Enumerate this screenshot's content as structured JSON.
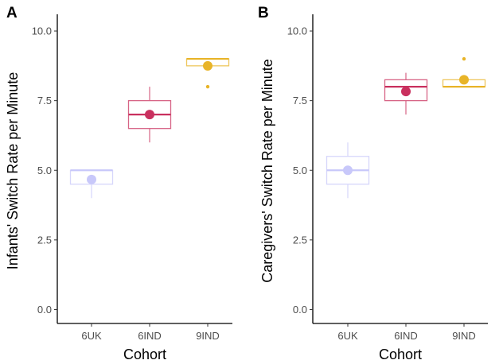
{
  "colors": {
    "6UK": "#c8c8fa",
    "6IND": "#c9305e",
    "9IND": "#e8b428"
  },
  "chart_data": [
    {
      "panel": "A",
      "type": "box",
      "xlabel": "Cohort",
      "ylabel": "Infants' Switch Rate per Minute",
      "ylim": [
        -0.5,
        10.6
      ],
      "yticks": [
        0.0,
        2.5,
        5.0,
        7.5,
        10.0
      ],
      "ytick_labels": [
        "0.0",
        "2.5",
        "5.0",
        "7.5",
        "10.0"
      ],
      "categories": [
        "6UK",
        "6IND",
        "9IND"
      ],
      "boxes": [
        {
          "category": "6UK",
          "min": 4.0,
          "q1": 4.5,
          "median": 5.0,
          "q3": 5.0,
          "max": 5.0,
          "mean": 4.67,
          "outliers": []
        },
        {
          "category": "6IND",
          "min": 6.0,
          "q1": 6.5,
          "median": 7.0,
          "q3": 7.5,
          "max": 8.0,
          "mean": 7.0,
          "outliers": []
        },
        {
          "category": "9IND",
          "min": 8.75,
          "q1": 8.75,
          "median": 9.0,
          "q3": 9.0,
          "max": 9.0,
          "mean": 8.75,
          "outliers": [
            8.0
          ]
        }
      ]
    },
    {
      "panel": "B",
      "type": "box",
      "xlabel": "Cohort",
      "ylabel": "Caregivers' Switch Rate per Minute",
      "ylim": [
        -0.5,
        10.6
      ],
      "yticks": [
        0.0,
        2.5,
        5.0,
        7.5,
        10.0
      ],
      "ytick_labels": [
        "0.0",
        "2.5",
        "5.0",
        "7.5",
        "10.0"
      ],
      "categories": [
        "6UK",
        "6IND",
        "9IND"
      ],
      "boxes": [
        {
          "category": "6UK",
          "min": 4.0,
          "q1": 4.5,
          "median": 5.0,
          "q3": 5.5,
          "max": 6.0,
          "mean": 5.0,
          "outliers": []
        },
        {
          "category": "6IND",
          "min": 7.0,
          "q1": 7.5,
          "median": 8.0,
          "q3": 8.25,
          "max": 8.5,
          "mean": 7.83,
          "outliers": []
        },
        {
          "category": "9IND",
          "min": 8.0,
          "q1": 8.0,
          "median": 8.0,
          "q3": 8.25,
          "max": 8.25,
          "mean": 8.25,
          "outliers": [
            9.0
          ]
        }
      ]
    }
  ]
}
